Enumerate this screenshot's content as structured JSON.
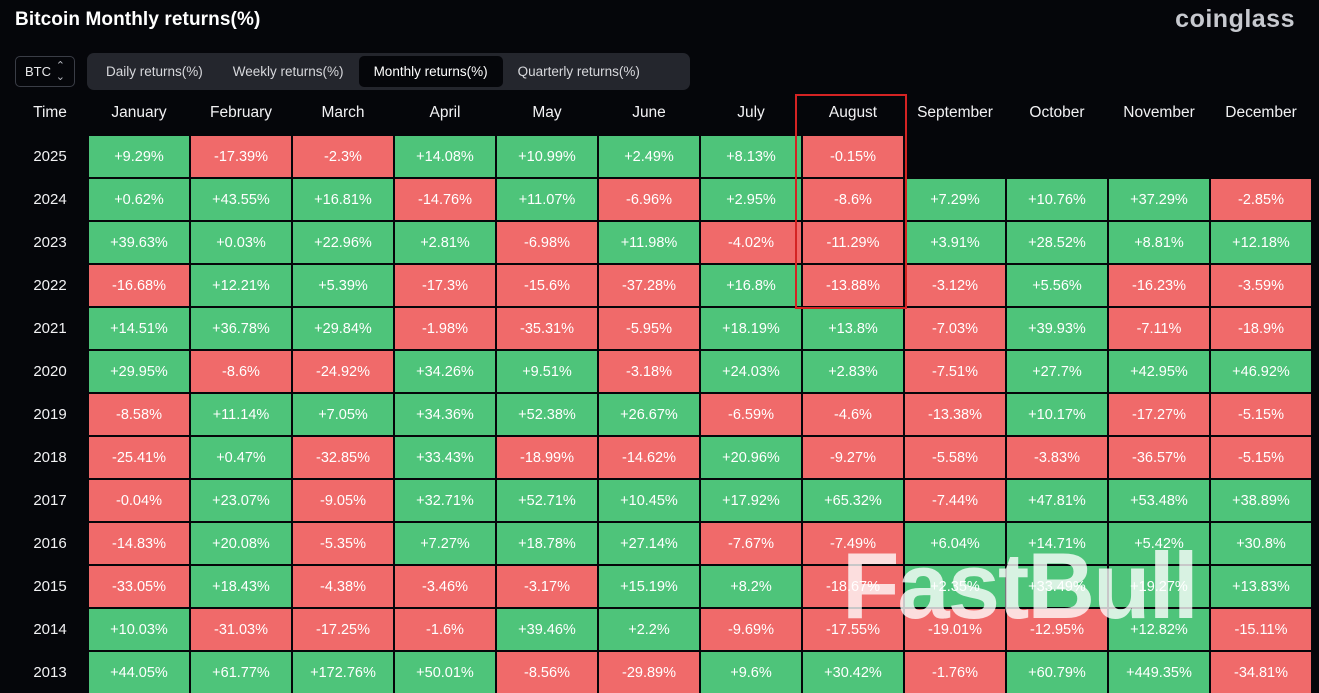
{
  "header": {
    "title": "Bitcoin Monthly returns(%)",
    "brand": "coinglass"
  },
  "coin_select": {
    "value": "BTC",
    "icon": "chevron-up-down-icon"
  },
  "tabs": [
    {
      "label": "Daily returns(%)",
      "active": false
    },
    {
      "label": "Weekly returns(%)",
      "active": false
    },
    {
      "label": "Monthly returns(%)",
      "active": true
    },
    {
      "label": "Quarterly returns(%)",
      "active": false
    }
  ],
  "table": {
    "time_header": "Time",
    "months": [
      "January",
      "February",
      "March",
      "April",
      "May",
      "June",
      "July",
      "August",
      "September",
      "October",
      "November",
      "December"
    ],
    "rows": [
      {
        "year": "2025",
        "values": [
          "+9.29%",
          "-17.39%",
          "-2.3%",
          "+14.08%",
          "+10.99%",
          "+2.49%",
          "+8.13%",
          "-0.15%",
          "",
          "",
          "",
          ""
        ]
      },
      {
        "year": "2024",
        "values": [
          "+0.62%",
          "+43.55%",
          "+16.81%",
          "-14.76%",
          "+11.07%",
          "-6.96%",
          "+2.95%",
          "-8.6%",
          "+7.29%",
          "+10.76%",
          "+37.29%",
          "-2.85%"
        ]
      },
      {
        "year": "2023",
        "values": [
          "+39.63%",
          "+0.03%",
          "+22.96%",
          "+2.81%",
          "-6.98%",
          "+11.98%",
          "-4.02%",
          "-11.29%",
          "+3.91%",
          "+28.52%",
          "+8.81%",
          "+12.18%"
        ]
      },
      {
        "year": "2022",
        "values": [
          "-16.68%",
          "+12.21%",
          "+5.39%",
          "-17.3%",
          "-15.6%",
          "-37.28%",
          "+16.8%",
          "-13.88%",
          "-3.12%",
          "+5.56%",
          "-16.23%",
          "-3.59%"
        ]
      },
      {
        "year": "2021",
        "values": [
          "+14.51%",
          "+36.78%",
          "+29.84%",
          "-1.98%",
          "-35.31%",
          "-5.95%",
          "+18.19%",
          "+13.8%",
          "-7.03%",
          "+39.93%",
          "-7.11%",
          "-18.9%"
        ]
      },
      {
        "year": "2020",
        "values": [
          "+29.95%",
          "-8.6%",
          "-24.92%",
          "+34.26%",
          "+9.51%",
          "-3.18%",
          "+24.03%",
          "+2.83%",
          "-7.51%",
          "+27.7%",
          "+42.95%",
          "+46.92%"
        ]
      },
      {
        "year": "2019",
        "values": [
          "-8.58%",
          "+11.14%",
          "+7.05%",
          "+34.36%",
          "+52.38%",
          "+26.67%",
          "-6.59%",
          "-4.6%",
          "-13.38%",
          "+10.17%",
          "-17.27%",
          "-5.15%"
        ]
      },
      {
        "year": "2018",
        "values": [
          "-25.41%",
          "+0.47%",
          "-32.85%",
          "+33.43%",
          "-18.99%",
          "-14.62%",
          "+20.96%",
          "-9.27%",
          "-5.58%",
          "-3.83%",
          "-36.57%",
          "-5.15%"
        ]
      },
      {
        "year": "2017",
        "values": [
          "-0.04%",
          "+23.07%",
          "-9.05%",
          "+32.71%",
          "+52.71%",
          "+10.45%",
          "+17.92%",
          "+65.32%",
          "-7.44%",
          "+47.81%",
          "+53.48%",
          "+38.89%"
        ]
      },
      {
        "year": "2016",
        "values": [
          "-14.83%",
          "+20.08%",
          "-5.35%",
          "+7.27%",
          "+18.78%",
          "+27.14%",
          "-7.67%",
          "-7.49%",
          "+6.04%",
          "+14.71%",
          "+5.42%",
          "+30.8%"
        ]
      },
      {
        "year": "2015",
        "values": [
          "-33.05%",
          "+18.43%",
          "-4.38%",
          "-3.46%",
          "-3.17%",
          "+15.19%",
          "+8.2%",
          "-18.67%",
          "+2.35%",
          "+33.49%",
          "+19.27%",
          "+13.83%"
        ]
      },
      {
        "year": "2014",
        "values": [
          "+10.03%",
          "-31.03%",
          "-17.25%",
          "-1.6%",
          "+39.46%",
          "+2.2%",
          "-9.69%",
          "-17.55%",
          "-19.01%",
          "-12.95%",
          "+12.82%",
          "-15.11%"
        ]
      },
      {
        "year": "2013",
        "values": [
          "+44.05%",
          "+61.77%",
          "+172.76%",
          "+50.01%",
          "-8.56%",
          "-29.89%",
          "+9.6%",
          "+30.42%",
          "-1.76%",
          "+60.79%",
          "+449.35%",
          "-34.81%"
        ]
      }
    ]
  },
  "colors": {
    "background": "#05060a",
    "positive": "#4ec47a",
    "negative": "#f06a6a",
    "highlight": "#d42323"
  },
  "watermark": {
    "text": "FastBull"
  }
}
